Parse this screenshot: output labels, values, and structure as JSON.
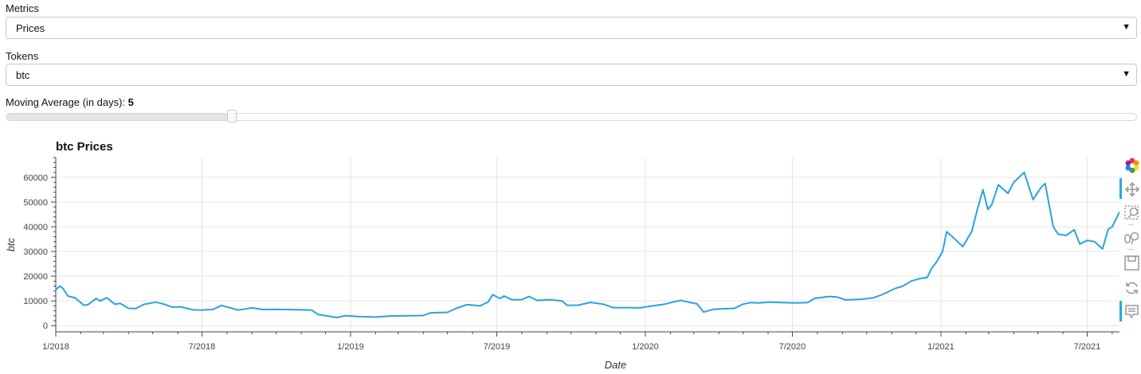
{
  "widgets": {
    "metrics_label": "Metrics",
    "metrics_value": "Prices",
    "tokens_label": "Tokens",
    "tokens_value": "btc",
    "ma_label": "Moving Average (in days): ",
    "ma_value": "5",
    "ma_fraction": 0.2
  },
  "toolbar": {
    "tools": [
      {
        "name": "bokeh-logo-icon",
        "active": false
      },
      {
        "name": "pan-icon",
        "active": true
      },
      {
        "name": "box-zoom-icon",
        "active": false
      },
      {
        "name": "wheel-zoom-icon",
        "active": false
      },
      {
        "name": "save-icon",
        "active": false
      },
      {
        "name": "reset-icon",
        "active": false
      },
      {
        "name": "hover-icon",
        "active": true
      }
    ]
  },
  "chart_data": {
    "type": "line",
    "title": "btc Prices",
    "xlabel": "Date",
    "ylabel": "btc",
    "color": "#2ca2dc",
    "x_range": [
      "2018-01-01",
      "2021-08-10"
    ],
    "ylim": [
      -2500,
      68000
    ],
    "yticks": [
      0,
      10000,
      20000,
      30000,
      40000,
      50000,
      60000
    ],
    "ytick_labels": [
      "0",
      "10000",
      "20000",
      "30000",
      "40000",
      "50000",
      "60000"
    ],
    "xticks": [
      "2018-01-01",
      "2018-07-01",
      "2019-01-01",
      "2019-07-01",
      "2020-01-01",
      "2020-07-01",
      "2021-01-01",
      "2021-07-01"
    ],
    "xtick_labels": [
      "1/2018",
      "7/2018",
      "1/2019",
      "7/2019",
      "1/2020",
      "7/2020",
      "1/2021",
      "7/2021"
    ],
    "grid": true,
    "series": [
      {
        "points": [
          [
            "2018-01-01",
            14500
          ],
          [
            "2018-01-06",
            16000
          ],
          [
            "2018-01-10",
            15000
          ],
          [
            "2018-01-16",
            12000
          ],
          [
            "2018-01-25",
            11200
          ],
          [
            "2018-02-05",
            8200
          ],
          [
            "2018-02-10",
            8500
          ],
          [
            "2018-02-20",
            11000
          ],
          [
            "2018-02-25",
            10000
          ],
          [
            "2018-03-05",
            11300
          ],
          [
            "2018-03-15",
            8700
          ],
          [
            "2018-03-22",
            9000
          ],
          [
            "2018-04-01",
            7000
          ],
          [
            "2018-04-10",
            6900
          ],
          [
            "2018-04-20",
            8600
          ],
          [
            "2018-05-05",
            9500
          ],
          [
            "2018-05-15",
            8700
          ],
          [
            "2018-05-25",
            7500
          ],
          [
            "2018-06-05",
            7600
          ],
          [
            "2018-06-20",
            6400
          ],
          [
            "2018-07-01",
            6300
          ],
          [
            "2018-07-15",
            6600
          ],
          [
            "2018-07-25",
            8200
          ],
          [
            "2018-08-05",
            7200
          ],
          [
            "2018-08-15",
            6300
          ],
          [
            "2018-09-01",
            7200
          ],
          [
            "2018-09-15",
            6500
          ],
          [
            "2018-10-01",
            6600
          ],
          [
            "2018-10-15",
            6500
          ],
          [
            "2018-11-01",
            6400
          ],
          [
            "2018-11-14",
            6300
          ],
          [
            "2018-11-22",
            4500
          ],
          [
            "2018-12-05",
            3800
          ],
          [
            "2018-12-15",
            3300
          ],
          [
            "2018-12-25",
            4000
          ],
          [
            "2019-01-10",
            3700
          ],
          [
            "2019-02-01",
            3500
          ],
          [
            "2019-02-20",
            3900
          ],
          [
            "2019-03-15",
            4000
          ],
          [
            "2019-04-01",
            4100
          ],
          [
            "2019-04-10",
            5200
          ],
          [
            "2019-05-01",
            5400
          ],
          [
            "2019-05-12",
            7000
          ],
          [
            "2019-05-25",
            8500
          ],
          [
            "2019-06-10",
            8000
          ],
          [
            "2019-06-20",
            9500
          ],
          [
            "2019-06-26",
            12500
          ],
          [
            "2019-07-05",
            11000
          ],
          [
            "2019-07-10",
            12000
          ],
          [
            "2019-07-20",
            10500
          ],
          [
            "2019-08-01",
            10500
          ],
          [
            "2019-08-10",
            11800
          ],
          [
            "2019-08-20",
            10200
          ],
          [
            "2019-09-05",
            10500
          ],
          [
            "2019-09-20",
            10000
          ],
          [
            "2019-09-26",
            8200
          ],
          [
            "2019-10-10",
            8300
          ],
          [
            "2019-10-25",
            9400
          ],
          [
            "2019-11-10",
            8700
          ],
          [
            "2019-11-22",
            7300
          ],
          [
            "2019-12-10",
            7300
          ],
          [
            "2019-12-25",
            7200
          ],
          [
            "2020-01-10",
            8000
          ],
          [
            "2020-01-25",
            8700
          ],
          [
            "2020-02-05",
            9600
          ],
          [
            "2020-02-14",
            10200
          ],
          [
            "2020-02-25",
            9400
          ],
          [
            "2020-03-05",
            8800
          ],
          [
            "2020-03-13",
            5500
          ],
          [
            "2020-03-25",
            6600
          ],
          [
            "2020-04-05",
            6800
          ],
          [
            "2020-04-20",
            7000
          ],
          [
            "2020-05-01",
            8700
          ],
          [
            "2020-05-10",
            9300
          ],
          [
            "2020-05-20",
            9200
          ],
          [
            "2020-06-01",
            9500
          ],
          [
            "2020-06-20",
            9300
          ],
          [
            "2020-07-05",
            9200
          ],
          [
            "2020-07-20",
            9300
          ],
          [
            "2020-07-28",
            11000
          ],
          [
            "2020-08-15",
            11800
          ],
          [
            "2020-08-25",
            11600
          ],
          [
            "2020-09-05",
            10400
          ],
          [
            "2020-09-25",
            10700
          ],
          [
            "2020-10-10",
            11300
          ],
          [
            "2020-10-22",
            12800
          ],
          [
            "2020-11-05",
            15000
          ],
          [
            "2020-11-15",
            16000
          ],
          [
            "2020-11-25",
            18000
          ],
          [
            "2020-12-05",
            19000
          ],
          [
            "2020-12-15",
            19500
          ],
          [
            "2020-12-20",
            23000
          ],
          [
            "2020-12-27",
            26000
          ],
          [
            "2021-01-03",
            30000
          ],
          [
            "2021-01-08",
            38000
          ],
          [
            "2021-01-15",
            36000
          ],
          [
            "2021-01-28",
            32000
          ],
          [
            "2021-02-08",
            38000
          ],
          [
            "2021-02-15",
            47000
          ],
          [
            "2021-02-22",
            55000
          ],
          [
            "2021-02-28",
            47000
          ],
          [
            "2021-03-05",
            49000
          ],
          [
            "2021-03-13",
            57000
          ],
          [
            "2021-03-25",
            53500
          ],
          [
            "2021-04-01",
            58000
          ],
          [
            "2021-04-14",
            62000
          ],
          [
            "2021-04-25",
            51000
          ],
          [
            "2021-05-05",
            56000
          ],
          [
            "2021-05-10",
            57500
          ],
          [
            "2021-05-20",
            40000
          ],
          [
            "2021-05-26",
            37000
          ],
          [
            "2021-06-05",
            36500
          ],
          [
            "2021-06-15",
            38800
          ],
          [
            "2021-06-22",
            33000
          ],
          [
            "2021-07-01",
            34500
          ],
          [
            "2021-07-10",
            34000
          ],
          [
            "2021-07-20",
            31000
          ],
          [
            "2021-07-27",
            39000
          ],
          [
            "2021-08-01",
            40000
          ],
          [
            "2021-08-10",
            46000
          ]
        ]
      }
    ]
  }
}
